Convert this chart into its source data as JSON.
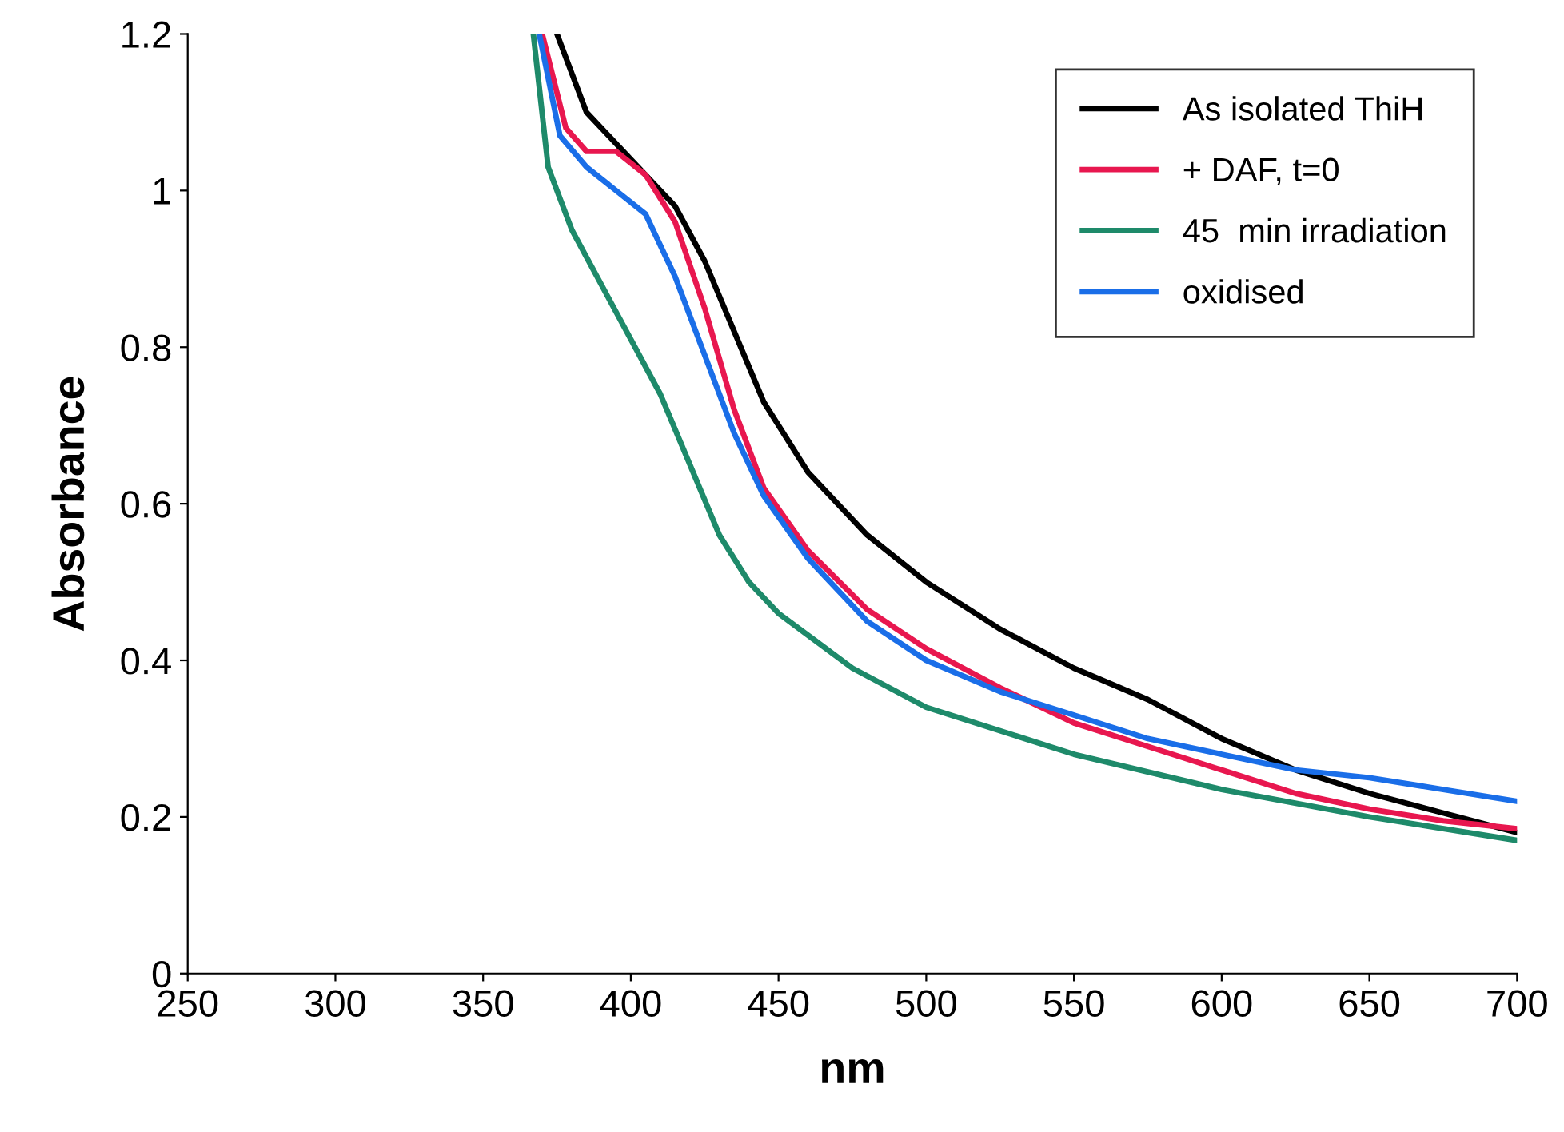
{
  "chart_data": {
    "type": "line",
    "xlabel": "nm",
    "ylabel": "Absorbance",
    "xlim": [
      250,
      700
    ],
    "xticks": [
      250,
      300,
      350,
      400,
      450,
      500,
      550,
      600,
      650,
      700
    ],
    "ylim": [
      0,
      1.2
    ],
    "yticks": [
      {
        "value": 0,
        "label": "0"
      },
      0.2,
      0.4,
      0.6,
      0.8,
      {
        "value": 1,
        "label": "1"
      },
      1.2
    ],
    "grid": false,
    "legend": "top right",
    "marker": "none",
    "line_style": "solid",
    "series": [
      {
        "name": "As isolated ThiH",
        "color": "#000000",
        "x": [
          375,
          385,
          395,
          405,
          415,
          425,
          435,
          445,
          460,
          480,
          500,
          525,
          550,
          575,
          600,
          625,
          650,
          675,
          700
        ],
        "values": [
          1.2,
          1.1,
          1.06,
          1.02,
          0.98,
          0.91,
          0.82,
          0.73,
          0.64,
          0.56,
          0.5,
          0.44,
          0.39,
          0.35,
          0.3,
          0.26,
          0.23,
          0.205,
          0.18
        ]
      },
      {
        "name": "+ DAF, t=0",
        "color": "#e8174f",
        "x": [
          370,
          378,
          385,
          395,
          405,
          415,
          425,
          435,
          445,
          460,
          480,
          500,
          525,
          550,
          575,
          600,
          625,
          650,
          675,
          700
        ],
        "values": [
          1.2,
          1.08,
          1.05,
          1.05,
          1.02,
          0.96,
          0.85,
          0.72,
          0.62,
          0.54,
          0.465,
          0.415,
          0.365,
          0.32,
          0.29,
          0.26,
          0.23,
          0.21,
          0.195,
          0.185
        ]
      },
      {
        "name": "45  min irradiation",
        "color": "#1e8a6a",
        "x": [
          367,
          372,
          380,
          390,
          400,
          410,
          420,
          430,
          440,
          450,
          475,
          500,
          550,
          600,
          650,
          700
        ],
        "values": [
          1.2,
          1.03,
          0.95,
          0.88,
          0.81,
          0.74,
          0.65,
          0.56,
          0.5,
          0.46,
          0.39,
          0.34,
          0.28,
          0.235,
          0.2,
          0.17
        ]
      },
      {
        "name": "oxidised",
        "color": "#1a6ee8",
        "x": [
          369,
          376,
          385,
          395,
          405,
          415,
          425,
          435,
          445,
          460,
          480,
          500,
          525,
          550,
          575,
          600,
          625,
          650,
          675,
          700
        ],
        "values": [
          1.2,
          1.07,
          1.03,
          1.0,
          0.97,
          0.89,
          0.79,
          0.69,
          0.61,
          0.53,
          0.45,
          0.4,
          0.36,
          0.33,
          0.3,
          0.28,
          0.26,
          0.25,
          0.235,
          0.22
        ]
      }
    ]
  }
}
